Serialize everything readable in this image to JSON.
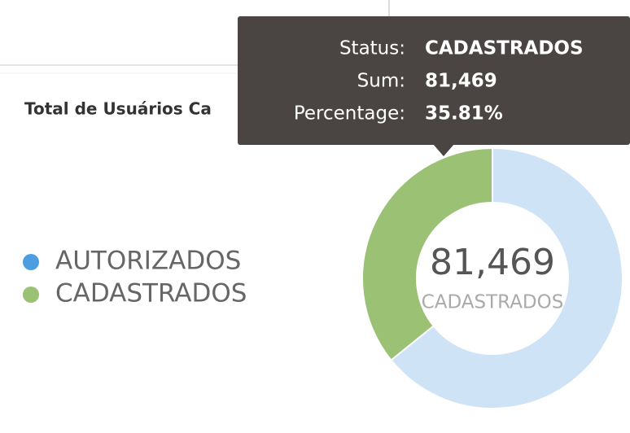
{
  "chart_data": {
    "type": "pie",
    "title": "Total de Usuários Ca",
    "categories": [
      "AUTORIZADOS",
      "CADASTRADOS"
    ],
    "values": [
      146034,
      81469
    ],
    "colors": [
      "#4d9de0",
      "#9bc174"
    ],
    "segment_colors": [
      "#cfe3f6",
      "#9bc174"
    ],
    "center": {
      "value": "81,469",
      "label": "CADASTRADOS"
    },
    "tooltip": {
      "rows": [
        {
          "label": "Status:",
          "value": "CADASTRADOS"
        },
        {
          "label": "Sum:",
          "value": "81,469"
        },
        {
          "label": "Percentage:",
          "value": "35.81%"
        }
      ]
    }
  }
}
